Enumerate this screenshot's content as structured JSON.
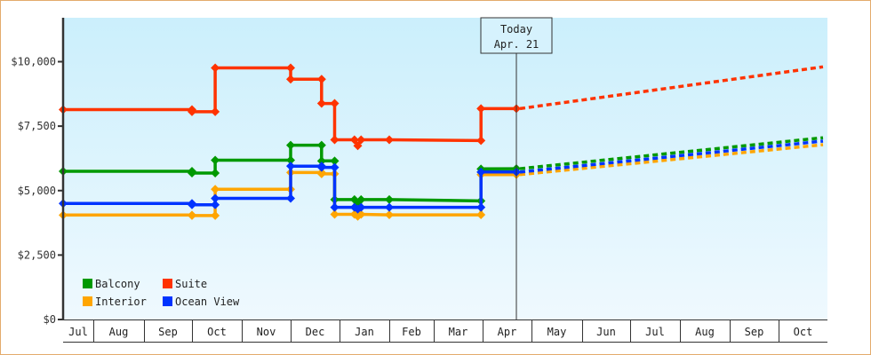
{
  "chart_data": {
    "type": "line",
    "subtype": "step line with dotted forecast",
    "title": "",
    "xlabel": "",
    "ylabel": "",
    "ylim": [
      0,
      11500
    ],
    "y_ticks": [
      "$0",
      "$2,500",
      "$5,000",
      "$7,500",
      "$10,000"
    ],
    "y_tick_values": [
      0,
      2500,
      5000,
      7500,
      10000
    ],
    "x_ticks": [
      "Jul",
      "Aug",
      "Sep",
      "Oct",
      "Nov",
      "Dec",
      "Jan",
      "Feb",
      "Mar",
      "Apr",
      "May",
      "Jun",
      "Jul",
      "Aug",
      "Sep",
      "Oct"
    ],
    "grid": false,
    "legend_position": "lower-left inside",
    "marker": {
      "label_line1": "Today",
      "label_line2": "Apr. 21"
    },
    "series": [
      {
        "name": "Balcony",
        "color": "#009900",
        "points": [
          {
            "date": "Jul 1",
            "value": 5750
          },
          {
            "date": "Oct 1",
            "value": 5750
          },
          {
            "date": "Oct 1",
            "value": 5680
          },
          {
            "date": "Oct 15",
            "value": 5680
          },
          {
            "date": "Oct 15",
            "value": 6180
          },
          {
            "date": "Dec 1",
            "value": 6180
          },
          {
            "date": "Dec 1",
            "value": 6760
          },
          {
            "date": "Dec 20",
            "value": 6760
          },
          {
            "date": "Dec 20",
            "value": 6150
          },
          {
            "date": "Dec 28",
            "value": 6150
          },
          {
            "date": "Dec 28",
            "value": 4650
          },
          {
            "date": "Jan 10",
            "value": 4650
          },
          {
            "date": "Jan 12",
            "value": 4500
          },
          {
            "date": "Jan 14",
            "value": 4650
          },
          {
            "date": "Feb 1",
            "value": 4650
          },
          {
            "date": "Mar 30",
            "value": 4600
          },
          {
            "date": "Mar 30",
            "value": 5840
          },
          {
            "date": "Apr 21",
            "value": 5850
          }
        ],
        "forecast": {
          "start": 5850,
          "end": 7050,
          "end_date": "Oct"
        }
      },
      {
        "name": "Suite",
        "color": "#ff3300",
        "points": [
          {
            "date": "Jul 1",
            "value": 8140
          },
          {
            "date": "Oct 1",
            "value": 8140
          },
          {
            "date": "Oct 1",
            "value": 8060
          },
          {
            "date": "Oct 15",
            "value": 8060
          },
          {
            "date": "Oct 15",
            "value": 9760
          },
          {
            "date": "Dec 1",
            "value": 9760
          },
          {
            "date": "Dec 1",
            "value": 9320
          },
          {
            "date": "Dec 20",
            "value": 9320
          },
          {
            "date": "Dec 20",
            "value": 8380
          },
          {
            "date": "Dec 28",
            "value": 8380
          },
          {
            "date": "Dec 28",
            "value": 6970
          },
          {
            "date": "Jan 10",
            "value": 6970
          },
          {
            "date": "Jan 12",
            "value": 6740
          },
          {
            "date": "Jan 14",
            "value": 6970
          },
          {
            "date": "Feb 1",
            "value": 6970
          },
          {
            "date": "Mar 30",
            "value": 6940
          },
          {
            "date": "Mar 30",
            "value": 8180
          },
          {
            "date": "Apr 21",
            "value": 8180
          }
        ],
        "forecast": {
          "start": 8180,
          "end": 9800,
          "end_date": "Oct"
        }
      },
      {
        "name": "Interior",
        "color": "#ffa500",
        "points": [
          {
            "date": "Jul 1",
            "value": 4050
          },
          {
            "date": "Oct 1",
            "value": 4050
          },
          {
            "date": "Oct 1",
            "value": 4030
          },
          {
            "date": "Oct 15",
            "value": 4030
          },
          {
            "date": "Oct 15",
            "value": 5050
          },
          {
            "date": "Dec 1",
            "value": 5050
          },
          {
            "date": "Dec 1",
            "value": 5700
          },
          {
            "date": "Dec 20",
            "value": 5700
          },
          {
            "date": "Dec 20",
            "value": 5650
          },
          {
            "date": "Dec 28",
            "value": 5650
          },
          {
            "date": "Dec 28",
            "value": 4080
          },
          {
            "date": "Jan 10",
            "value": 4080
          },
          {
            "date": "Jan 12",
            "value": 4000
          },
          {
            "date": "Jan 14",
            "value": 4080
          },
          {
            "date": "Feb 1",
            "value": 4060
          },
          {
            "date": "Mar 30",
            "value": 4060
          },
          {
            "date": "Mar 30",
            "value": 5620
          },
          {
            "date": "Apr 21",
            "value": 5620
          }
        ],
        "forecast": {
          "start": 5620,
          "end": 6780,
          "end_date": "Oct"
        }
      },
      {
        "name": "Ocean View",
        "color": "#0033ff",
        "points": [
          {
            "date": "Jul 1",
            "value": 4500
          },
          {
            "date": "Oct 1",
            "value": 4500
          },
          {
            "date": "Oct 1",
            "value": 4450
          },
          {
            "date": "Oct 15",
            "value": 4450
          },
          {
            "date": "Oct 15",
            "value": 4700
          },
          {
            "date": "Dec 1",
            "value": 4700
          },
          {
            "date": "Dec 1",
            "value": 5950
          },
          {
            "date": "Dec 20",
            "value": 5950
          },
          {
            "date": "Dec 20",
            "value": 5900
          },
          {
            "date": "Dec 28",
            "value": 5900
          },
          {
            "date": "Dec 28",
            "value": 4350
          },
          {
            "date": "Jan 10",
            "value": 4350
          },
          {
            "date": "Jan 12",
            "value": 4280
          },
          {
            "date": "Jan 14",
            "value": 4350
          },
          {
            "date": "Feb 1",
            "value": 4350
          },
          {
            "date": "Mar 30",
            "value": 4350
          },
          {
            "date": "Mar 30",
            "value": 5720
          },
          {
            "date": "Apr 21",
            "value": 5720
          }
        ],
        "forecast": {
          "start": 5720,
          "end": 6920,
          "end_date": "Oct"
        }
      }
    ]
  },
  "legend": {
    "items": [
      {
        "label": "Balcony",
        "color": "#009900"
      },
      {
        "label": "Suite",
        "color": "#ff3300"
      },
      {
        "label": "Interior",
        "color": "#ffa500"
      },
      {
        "label": "Ocean View",
        "color": "#0033ff"
      }
    ]
  },
  "colors": {
    "frame_border": "#e3ab6c",
    "plot_bg_top": "#cceffc",
    "plot_bg_bottom": "#eef9fe",
    "axis": "#333333"
  }
}
